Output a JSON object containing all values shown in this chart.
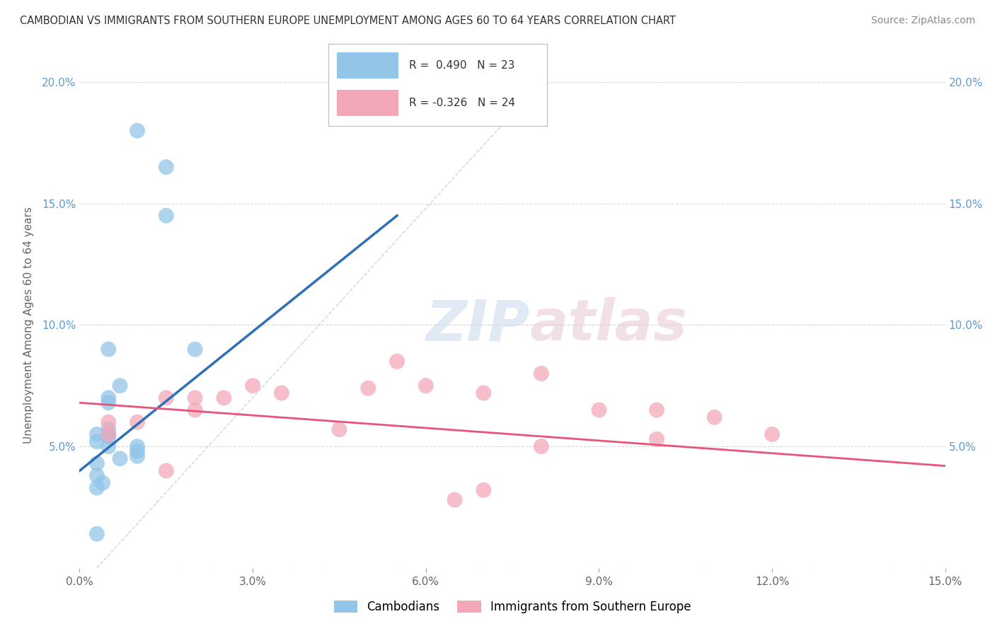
{
  "title": "CAMBODIAN VS IMMIGRANTS FROM SOUTHERN EUROPE UNEMPLOYMENT AMONG AGES 60 TO 64 YEARS CORRELATION CHART",
  "source": "Source: ZipAtlas.com",
  "ylabel": "Unemployment Among Ages 60 to 64 years",
  "xlim": [
    0.0,
    0.15
  ],
  "ylim": [
    0.0,
    0.2
  ],
  "xticks": [
    0.0,
    0.03,
    0.06,
    0.09,
    0.12,
    0.15
  ],
  "yticks": [
    0.0,
    0.05,
    0.1,
    0.15,
    0.2
  ],
  "xtick_labels": [
    "0.0%",
    "3.0%",
    "6.0%",
    "9.0%",
    "12.0%",
    "15.0%"
  ],
  "ytick_labels_left": [
    "",
    "5.0%",
    "10.0%",
    "15.0%",
    "20.0%"
  ],
  "ytick_labels_right": [
    "",
    "5.0%",
    "10.0%",
    "15.0%",
    "20.0%"
  ],
  "blue_R": 0.49,
  "blue_N": 23,
  "pink_R": -0.326,
  "pink_N": 24,
  "blue_color": "#92C5E8",
  "pink_color": "#F4A7B9",
  "blue_line_color": "#2F6FB5",
  "pink_line_color": "#E8547A",
  "right_tick_color": "#5B9BD5",
  "left_tick_color": "#5B9BD5",
  "watermark_zip": "ZIP",
  "watermark_atlas": "atlas",
  "legend_label_blue": "Cambodians",
  "legend_label_pink": "Immigrants from Southern Europe",
  "blue_scatter_x": [
    0.005,
    0.01,
    0.015,
    0.015,
    0.02,
    0.005,
    0.007,
    0.003,
    0.003,
    0.003,
    0.003,
    0.004,
    0.003,
    0.003,
    0.005,
    0.005,
    0.005,
    0.005,
    0.005,
    0.007,
    0.01,
    0.01,
    0.01
  ],
  "blue_scatter_y": [
    0.07,
    0.18,
    0.165,
    0.145,
    0.09,
    0.09,
    0.075,
    0.055,
    0.052,
    0.043,
    0.038,
    0.035,
    0.033,
    0.014,
    0.068,
    0.057,
    0.055,
    0.05,
    0.054,
    0.045,
    0.05,
    0.048,
    0.046
  ],
  "pink_scatter_x": [
    0.005,
    0.01,
    0.015,
    0.02,
    0.02,
    0.025,
    0.03,
    0.05,
    0.06,
    0.07,
    0.08,
    0.09,
    0.1,
    0.11,
    0.12,
    0.1,
    0.08,
    0.07,
    0.065,
    0.055,
    0.045,
    0.035,
    0.015,
    0.005
  ],
  "pink_scatter_y": [
    0.055,
    0.06,
    0.07,
    0.065,
    0.07,
    0.07,
    0.075,
    0.074,
    0.075,
    0.072,
    0.08,
    0.065,
    0.065,
    0.062,
    0.055,
    0.053,
    0.05,
    0.032,
    0.028,
    0.085,
    0.057,
    0.072,
    0.04,
    0.06
  ],
  "background_color": "#FFFFFF",
  "grid_color": "#CCCCCC",
  "blue_trend_x0": 0.0,
  "blue_trend_y0": 0.04,
  "blue_trend_x1": 0.055,
  "blue_trend_y1": 0.145,
  "pink_trend_x0": 0.0,
  "pink_trend_y0": 0.068,
  "pink_trend_x1": 0.15,
  "pink_trend_y1": 0.042
}
